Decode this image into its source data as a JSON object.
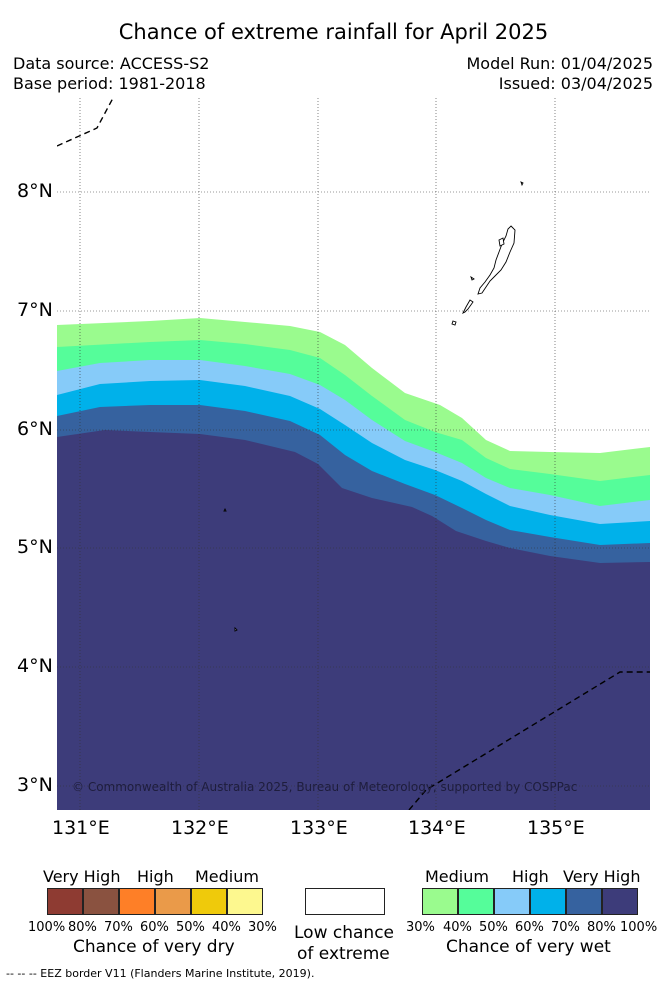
{
  "header": {
    "title": "Chance of extreme rainfall for April 2025",
    "data_source": "Data source: ACCESS-S2",
    "base_period": "Base period: 1981-2018",
    "model_run": "Model Run: 01/04/2025",
    "issued": "Issued: 03/04/2025"
  },
  "map": {
    "lat_labels": [
      "8°N",
      "7°N",
      "6°N",
      "5°N",
      "4°N",
      "3°N"
    ],
    "lon_labels": [
      "131°E",
      "132°E",
      "133°E",
      "134°E",
      "135°E"
    ],
    "copyright": "© Commonwealth of Australia 2025, Bureau of Meteorology, supported by COSPPac",
    "colors": {
      "wet_30_40": "#9afb8e",
      "wet_40_50": "#55fd9a",
      "wet_50_60": "#86cbf9",
      "wet_60_70": "#00b1ea",
      "wet_70_80": "#36629f",
      "wet_80_100": "#3d3c7a"
    }
  },
  "legend": {
    "dry": {
      "categories": [
        "Very High",
        "High",
        "Medium"
      ],
      "ticks": [
        "100%",
        "80%",
        "70%",
        "60%",
        "50%",
        "40%",
        "30%"
      ],
      "title": "Chance of very dry",
      "colors": [
        "#8e3b32",
        "#8a5240",
        "#fe7f27",
        "#ea9a49",
        "#efca0b",
        "#fdf88f"
      ]
    },
    "low": {
      "line1": "Low chance",
      "line2": "of extreme"
    },
    "wet": {
      "categories": [
        "Medium",
        "High",
        "Very High"
      ],
      "ticks": [
        "30%",
        "40%",
        "50%",
        "60%",
        "70%",
        "80%",
        "100%"
      ],
      "title": "Chance of very wet",
      "colors": [
        "#9afb8e",
        "#55fd9a",
        "#86cbf9",
        "#00b1ea",
        "#36629f",
        "#3d3c7a"
      ]
    }
  },
  "footer": "--  --  -- EEZ border V11 (Flanders Marine Institute, 2019)."
}
